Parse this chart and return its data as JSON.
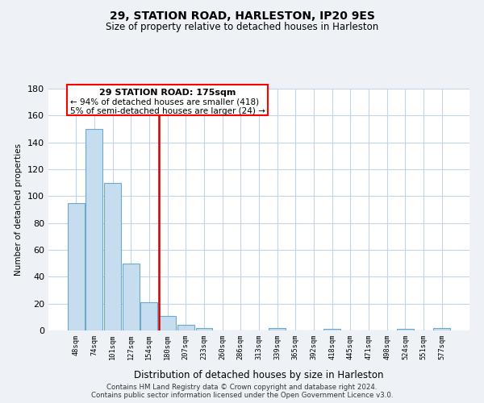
{
  "title": "29, STATION ROAD, HARLESTON, IP20 9ES",
  "subtitle": "Size of property relative to detached houses in Harleston",
  "xlabel": "Distribution of detached houses by size in Harleston",
  "ylabel": "Number of detached properties",
  "bar_color": "#c5ddef",
  "bar_edge_color": "#6ea8cc",
  "bin_labels": [
    "48sqm",
    "74sqm",
    "101sqm",
    "127sqm",
    "154sqm",
    "180sqm",
    "207sqm",
    "233sqm",
    "260sqm",
    "286sqm",
    "313sqm",
    "339sqm",
    "365sqm",
    "392sqm",
    "418sqm",
    "445sqm",
    "471sqm",
    "498sqm",
    "524sqm",
    "551sqm",
    "577sqm"
  ],
  "bar_heights": [
    95,
    150,
    110,
    50,
    21,
    11,
    4,
    2,
    0,
    0,
    0,
    2,
    0,
    0,
    1,
    0,
    0,
    0,
    1,
    0,
    2
  ],
  "ylim": [
    0,
    180
  ],
  "yticks": [
    0,
    20,
    40,
    60,
    80,
    100,
    120,
    140,
    160,
    180
  ],
  "annotation_title": "29 STATION ROAD: 175sqm",
  "annotation_line1": "← 94% of detached houses are smaller (418)",
  "annotation_line2": "5% of semi-detached houses are larger (24) →",
  "footer_line1": "Contains HM Land Registry data © Crown copyright and database right 2024.",
  "footer_line2": "Contains public sector information licensed under the Open Government Licence v3.0.",
  "bg_color": "#eef2f7",
  "plot_bg_color": "#ffffff",
  "grid_color": "#c5d5e5",
  "ref_line_color": "#cc0000",
  "ref_bar_index": 5
}
